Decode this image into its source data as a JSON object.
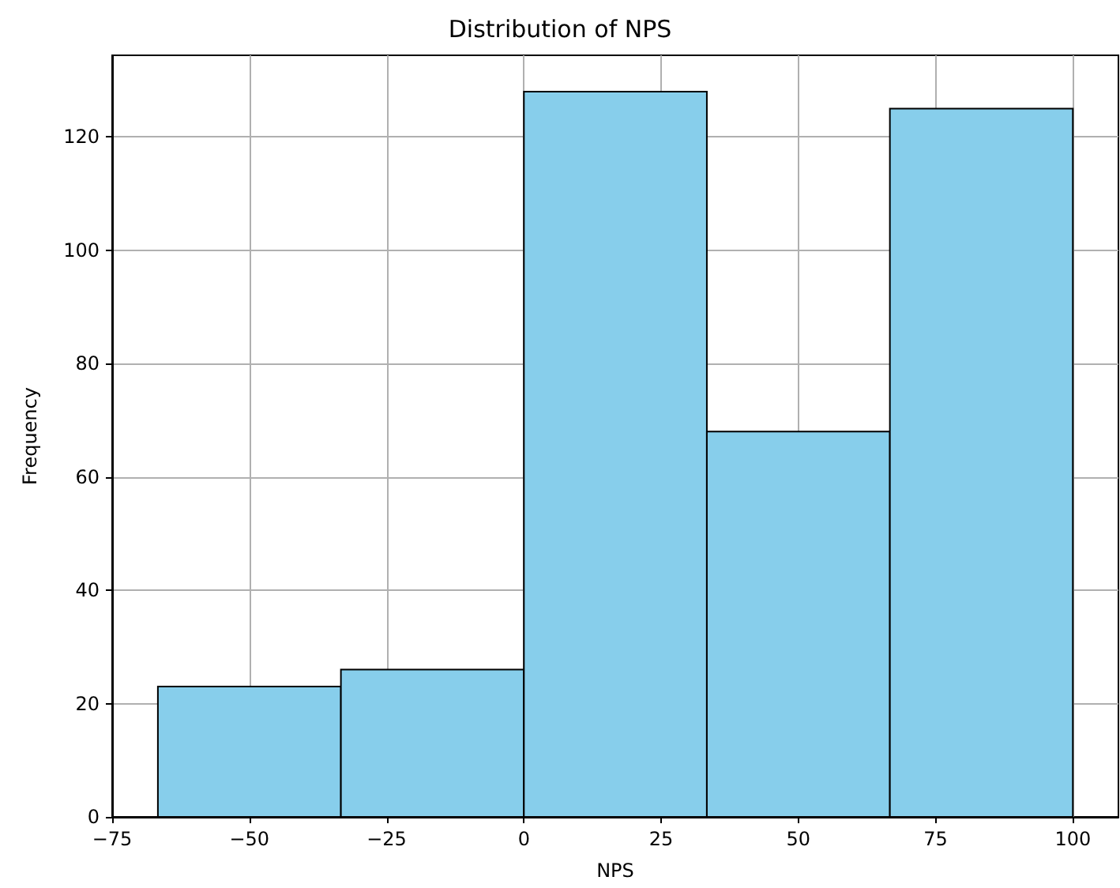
{
  "chart_data": {
    "type": "histogram",
    "title": "Distribution of NPS",
    "xlabel": "NPS",
    "ylabel": "Frequency",
    "bins": [
      -66.67,
      -33.33,
      0,
      33.33,
      66.67,
      100
    ],
    "values": [
      23,
      26,
      128,
      68,
      125
    ],
    "color": "#87ceeb",
    "xlim": [
      -75,
      108.3
    ],
    "xticks": [
      -75,
      -50,
      -25,
      0,
      25,
      50,
      75,
      100
    ],
    "ylim": [
      0,
      134.4
    ],
    "yticks": [
      0,
      20,
      40,
      60,
      80,
      100,
      120
    ],
    "grid": true
  }
}
